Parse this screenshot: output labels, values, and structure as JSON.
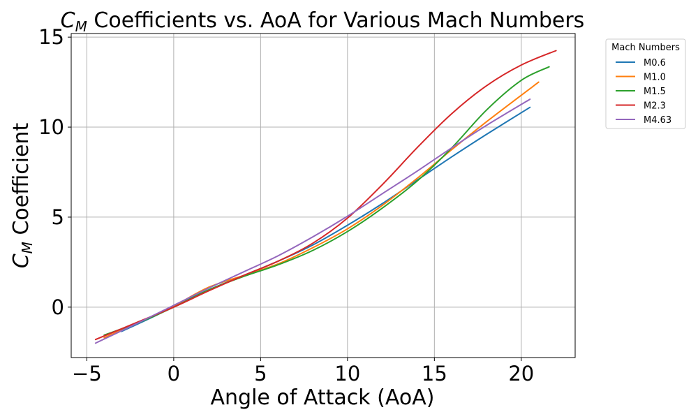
{
  "chart_data": {
    "type": "line",
    "title_symbol": "C",
    "title_symbol_sub": "M",
    "title_rest": " Coefficients vs. AoA for Various Mach Numbers",
    "xlabel": "Angle of Attack (AoA)",
    "ylabel_symbol": "C",
    "ylabel_symbol_sub": "M",
    "ylabel_rest": " Coefficient",
    "xlim": [
      -5.9,
      23.1
    ],
    "ylim": [
      -2.8,
      15.2
    ],
    "xticks": [
      -5,
      0,
      5,
      10,
      15,
      20
    ],
    "xtick_labels": [
      "−5",
      "0",
      "5",
      "10",
      "15",
      "20"
    ],
    "yticks": [
      0,
      5,
      10,
      15
    ],
    "ytick_labels": [
      "0",
      "5",
      "10",
      "15"
    ],
    "grid": true,
    "legend": {
      "title": "Mach Numbers",
      "placement": "outside-top-right"
    },
    "series": [
      {
        "name": "M0.6",
        "color": "#1f77b4",
        "x": [
          -3.0,
          -1.0,
          0.0,
          2.0,
          4.0,
          6.0,
          8.0,
          10.0,
          12.0,
          14.0,
          16.0,
          18.0,
          20.5
        ],
        "y": [
          -1.35,
          -0.45,
          0.05,
          0.95,
          1.75,
          2.55,
          3.45,
          4.55,
          5.75,
          7.05,
          8.35,
          9.6,
          11.1
        ]
      },
      {
        "name": "M1.0",
        "color": "#ff7f0e",
        "x": [
          -4.0,
          -2.0,
          0.0,
          1.0,
          2.0,
          3.0,
          4.0,
          6.0,
          8.0,
          10.0,
          12.0,
          14.0,
          16.0,
          18.0,
          21.0
        ],
        "y": [
          -1.7,
          -0.85,
          0.05,
          0.6,
          1.1,
          1.45,
          1.75,
          2.4,
          3.3,
          4.35,
          5.65,
          7.15,
          8.75,
          10.3,
          12.5
        ]
      },
      {
        "name": "M1.5",
        "color": "#2ca02c",
        "x": [
          -4.0,
          -2.0,
          0.0,
          2.0,
          4.0,
          6.0,
          8.0,
          10.0,
          12.0,
          14.0,
          16.0,
          18.0,
          20.0,
          21.6
        ],
        "y": [
          -1.55,
          -0.85,
          0.0,
          0.95,
          1.7,
          2.35,
          3.15,
          4.2,
          5.5,
          7.0,
          8.85,
          10.95,
          12.6,
          13.35
        ]
      },
      {
        "name": "M2.3",
        "color": "#d62728",
        "x": [
          -4.5,
          -2.0,
          0.0,
          2.0,
          4.0,
          6.0,
          8.0,
          10.0,
          12.0,
          14.0,
          16.0,
          18.0,
          20.0,
          22.0
        ],
        "y": [
          -1.8,
          -0.8,
          0.0,
          0.9,
          1.75,
          2.55,
          3.55,
          4.95,
          6.8,
          8.85,
          10.75,
          12.3,
          13.45,
          14.25
        ]
      },
      {
        "name": "M4.63",
        "color": "#9467bd",
        "x": [
          -4.5,
          -2.0,
          0.0,
          2.0,
          4.0,
          6.0,
          8.0,
          10.0,
          12.0,
          14.0,
          16.0,
          18.0,
          20.5
        ],
        "y": [
          -2.0,
          -0.85,
          0.1,
          1.05,
          1.95,
          2.85,
          3.9,
          5.05,
          6.3,
          7.55,
          8.85,
          10.1,
          11.55
        ]
      }
    ]
  }
}
